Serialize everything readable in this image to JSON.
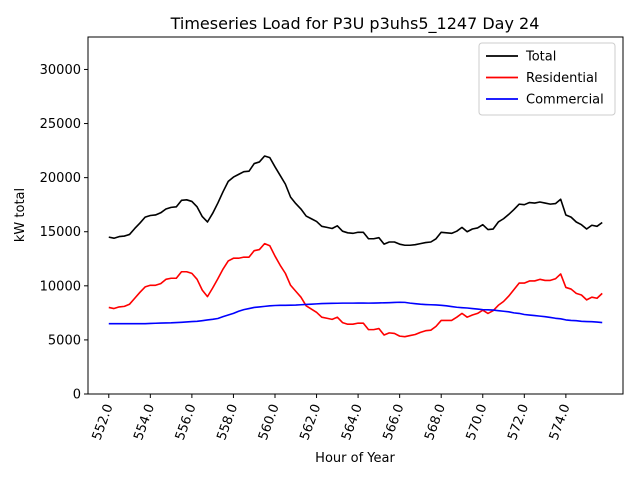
{
  "chart_data": {
    "type": "line",
    "title": "Timeseries Load for P3U p3uhs5_1247  Day 24",
    "xlabel": "Hour of Year",
    "ylabel": "kW total",
    "xlim": [
      551.0,
      576.75
    ],
    "ylim": [
      0,
      33000
    ],
    "xticks": [
      552.0,
      554.0,
      556.0,
      558.0,
      560.0,
      562.0,
      564.0,
      566.0,
      568.0,
      570.0,
      572.0,
      574.0
    ],
    "xtick_labels": [
      "552.0",
      "554.0",
      "556.0",
      "558.0",
      "560.0",
      "562.0",
      "564.0",
      "566.0",
      "568.0",
      "570.0",
      "572.0",
      "574.0"
    ],
    "yticks": [
      0,
      5000,
      10000,
      15000,
      20000,
      25000,
      30000
    ],
    "ytick_labels": [
      "0",
      "5000",
      "10000",
      "15000",
      "20000",
      "25000",
      "30000"
    ],
    "grid": false,
    "legend_position": "top-right",
    "x": [
      552.0,
      552.25,
      552.5,
      552.75,
      553.0,
      553.25,
      553.5,
      553.75,
      554.0,
      554.25,
      554.5,
      554.75,
      555.0,
      555.25,
      555.5,
      555.75,
      556.0,
      556.25,
      556.5,
      556.75,
      557.0,
      557.25,
      557.5,
      557.75,
      558.0,
      558.25,
      558.5,
      558.75,
      559.0,
      559.25,
      559.5,
      559.75,
      560.0,
      560.25,
      560.5,
      560.75,
      561.0,
      561.25,
      561.5,
      561.75,
      562.0,
      562.25,
      562.5,
      562.75,
      563.0,
      563.25,
      563.5,
      563.75,
      564.0,
      564.25,
      564.5,
      564.75,
      565.0,
      565.25,
      565.5,
      565.75,
      566.0,
      566.25,
      566.5,
      566.75,
      567.0,
      567.25,
      567.5,
      567.75,
      568.0,
      568.25,
      568.5,
      568.75,
      569.0,
      569.25,
      569.5,
      569.75,
      570.0,
      570.25,
      570.5,
      570.75,
      571.0,
      571.25,
      571.5,
      571.75,
      572.0,
      572.25,
      572.5,
      572.75,
      573.0,
      573.25,
      573.5,
      573.75,
      574.0,
      574.25,
      574.5,
      574.75,
      575.0,
      575.25,
      575.5,
      575.75
    ],
    "series": [
      {
        "name": "Total",
        "color": "#000000",
        "values": [
          14500,
          14400,
          14550,
          14600,
          14750,
          15300,
          15800,
          16350,
          16500,
          16550,
          16750,
          17100,
          17250,
          17300,
          17900,
          17950,
          17800,
          17300,
          16400,
          15900,
          16700,
          17650,
          18700,
          19650,
          20050,
          20300,
          20550,
          20600,
          21300,
          21450,
          22000,
          21850,
          21000,
          20200,
          19400,
          18200,
          17600,
          17100,
          16450,
          16200,
          15950,
          15500,
          15400,
          15300,
          15550,
          15050,
          14900,
          14850,
          14950,
          14950,
          14350,
          14350,
          14450,
          13850,
          14050,
          14050,
          13850,
          13750,
          13750,
          13800,
          13900,
          14000,
          14050,
          14350,
          14950,
          14900,
          14850,
          15050,
          15400,
          15000,
          15250,
          15350,
          15650,
          15200,
          15250,
          15900,
          16200,
          16600,
          17050,
          17550,
          17500,
          17700,
          17650,
          17750,
          17650,
          17550,
          17600,
          18000,
          16550,
          16350,
          15900,
          15650,
          15250,
          15600,
          15500,
          15850
        ]
      },
      {
        "name": "Residential",
        "color": "#ff0000",
        "values": [
          8000,
          7900,
          8050,
          8100,
          8300,
          8850,
          9400,
          9900,
          10050,
          10050,
          10200,
          10600,
          10700,
          10700,
          11300,
          11300,
          11150,
          10600,
          9600,
          9000,
          9800,
          10650,
          11550,
          12300,
          12550,
          12550,
          12650,
          12650,
          13250,
          13350,
          13900,
          13700,
          12750,
          11900,
          11150,
          10050,
          9500,
          8950,
          8150,
          7850,
          7550,
          7100,
          7000,
          6900,
          7100,
          6600,
          6450,
          6450,
          6550,
          6550,
          5950,
          5950,
          6050,
          5450,
          5650,
          5600,
          5350,
          5300,
          5400,
          5500,
          5700,
          5850,
          5900,
          6250,
          6800,
          6800,
          6800,
          7100,
          7450,
          7100,
          7300,
          7450,
          7750,
          7450,
          7700,
          8200,
          8550,
          9050,
          9650,
          10250,
          10250,
          10450,
          10450,
          10600,
          10500,
          10500,
          10650,
          11100,
          9850,
          9700,
          9300,
          9150,
          8700,
          8950,
          8850,
          9300
        ]
      },
      {
        "name": "Commercial",
        "color": "#0000ff",
        "values": [
          6500,
          6500,
          6500,
          6500,
          6500,
          6500,
          6500,
          6500,
          6520,
          6540,
          6560,
          6570,
          6580,
          6600,
          6630,
          6660,
          6700,
          6720,
          6780,
          6850,
          6900,
          6980,
          7150,
          7300,
          7450,
          7650,
          7800,
          7900,
          8000,
          8050,
          8100,
          8150,
          8180,
          8200,
          8200,
          8210,
          8220,
          8250,
          8280,
          8300,
          8330,
          8360,
          8370,
          8380,
          8390,
          8400,
          8400,
          8400,
          8410,
          8410,
          8400,
          8410,
          8420,
          8430,
          8440,
          8460,
          8480,
          8470,
          8400,
          8350,
          8300,
          8270,
          8250,
          8230,
          8200,
          8150,
          8080,
          8020,
          7980,
          7950,
          7900,
          7850,
          7800,
          7780,
          7760,
          7700,
          7650,
          7600,
          7500,
          7450,
          7350,
          7300,
          7250,
          7200,
          7150,
          7080,
          7000,
          6950,
          6850,
          6800,
          6780,
          6720,
          6700,
          6680,
          6650,
          6600
        ]
      }
    ]
  }
}
